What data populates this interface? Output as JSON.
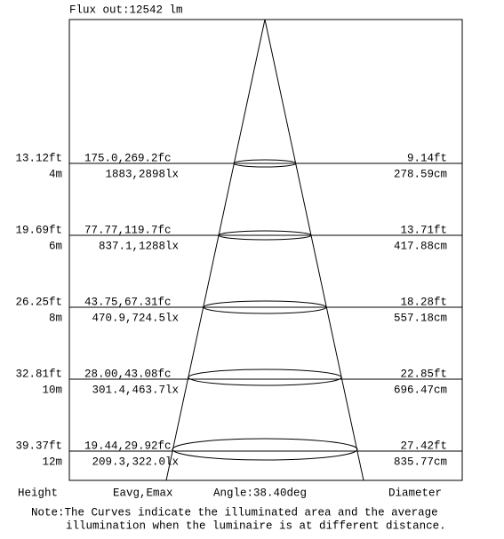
{
  "header": {
    "title": "Flux out:12542 lm"
  },
  "levels": [
    {
      "height_ft": "13.12ft",
      "height_m": "4m",
      "fc": "175.0,269.2fc",
      "lx": "1883,2898lx",
      "diameter_ft": "9.14ft",
      "diameter_cm": "278.59cm"
    },
    {
      "height_ft": "19.69ft",
      "height_m": "6m",
      "fc": "77.77,119.7fc",
      "lx": "837.1,1288lx",
      "diameter_ft": "13.71ft",
      "diameter_cm": "417.88cm"
    },
    {
      "height_ft": "26.25ft",
      "height_m": "8m",
      "fc": "43.75,67.31fc",
      "lx": "470.9,724.5lx",
      "diameter_ft": "18.28ft",
      "diameter_cm": "557.18cm"
    },
    {
      "height_ft": "32.81ft",
      "height_m": "10m",
      "fc": "28.00,43.08fc",
      "lx": "301.4,463.7lx",
      "diameter_ft": "22.85ft",
      "diameter_cm": "696.47cm"
    },
    {
      "height_ft": "39.37ft",
      "height_m": "12m",
      "fc": "19.44,29.92fc",
      "lx": "209.3,322.0lx",
      "diameter_ft": "27.42ft",
      "diameter_cm": "835.77cm"
    }
  ],
  "footer": {
    "height": "Height",
    "eavg": "Eavg,Emax",
    "angle": "Angle:38.40deg",
    "diameter": "Diameter"
  },
  "note": {
    "line1": "Note:The Curves indicate the illuminated area and the average",
    "line2": "illumination when the luminaire is at different distance."
  }
}
